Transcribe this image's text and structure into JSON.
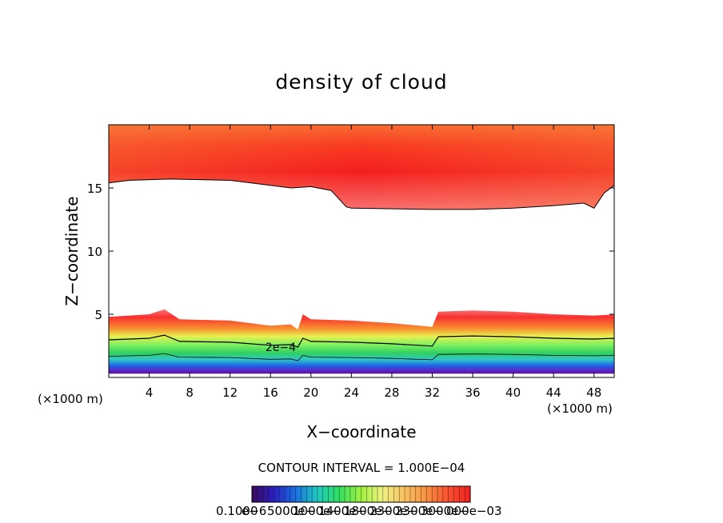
{
  "chart_data": {
    "type": "heatmap",
    "title": "density of cloud",
    "xlabel": "X−coordinate",
    "ylabel": "Z−coordinate",
    "x_unit_label": "(×1000 m)",
    "xlim": [
      0,
      50
    ],
    "ylim": [
      0,
      20
    ],
    "x_ticks": [
      4,
      8,
      12,
      16,
      20,
      24,
      28,
      32,
      36,
      40,
      44,
      48
    ],
    "y_ticks": [
      5,
      10,
      15
    ],
    "contour_interval_text": "CONTOUR INTERVAL = 1.000E−04",
    "contour_label": "2e−4",
    "colorbar_labels": [
      "0.1000",
      "e−6",
      "5000e−",
      "1000e−",
      "1400e−",
      "1800e−",
      "2300e−",
      "2300e−",
      "3000e−",
      "000e−03"
    ],
    "colorbar_colors": [
      "#3a0a5a",
      "#2a20c0",
      "#1a70e0",
      "#20c8c0",
      "#30e060",
      "#a0f040",
      "#f0f080",
      "#f8c060",
      "#f89040",
      "#f85030",
      "#f02020"
    ],
    "upper_layer": {
      "top_z": 20,
      "bottom_edge": [
        [
          0,
          15.4
        ],
        [
          2,
          15.6
        ],
        [
          6,
          15.7
        ],
        [
          12,
          15.6
        ],
        [
          16,
          15.2
        ],
        [
          18,
          15.0
        ],
        [
          20,
          15.1
        ],
        [
          22,
          14.8
        ],
        [
          23.5,
          13.5
        ],
        [
          24,
          13.4
        ],
        [
          32,
          13.3
        ],
        [
          36,
          13.3
        ],
        [
          40,
          13.4
        ],
        [
          44,
          13.6
        ],
        [
          47,
          13.8
        ],
        [
          48,
          13.4
        ],
        [
          49,
          14.6
        ],
        [
          50,
          15.2
        ]
      ]
    },
    "lower_layer": {
      "top_edge": [
        [
          0,
          4.8
        ],
        [
          4,
          5.0
        ],
        [
          5.5,
          5.4
        ],
        [
          7,
          4.6
        ],
        [
          12,
          4.5
        ],
        [
          16,
          4.1
        ],
        [
          18,
          4.2
        ],
        [
          18.7,
          3.8
        ],
        [
          19.2,
          5.0
        ],
        [
          20,
          4.6
        ],
        [
          24,
          4.5
        ],
        [
          28,
          4.3
        ],
        [
          32,
          4.0
        ],
        [
          32.6,
          5.2
        ],
        [
          36,
          5.3
        ],
        [
          40,
          5.2
        ],
        [
          44,
          5.0
        ],
        [
          48,
          4.9
        ],
        [
          50,
          5.0
        ]
      ],
      "bottom_z": 0.3
    },
    "colormap": "rainbow",
    "grid": false
  }
}
